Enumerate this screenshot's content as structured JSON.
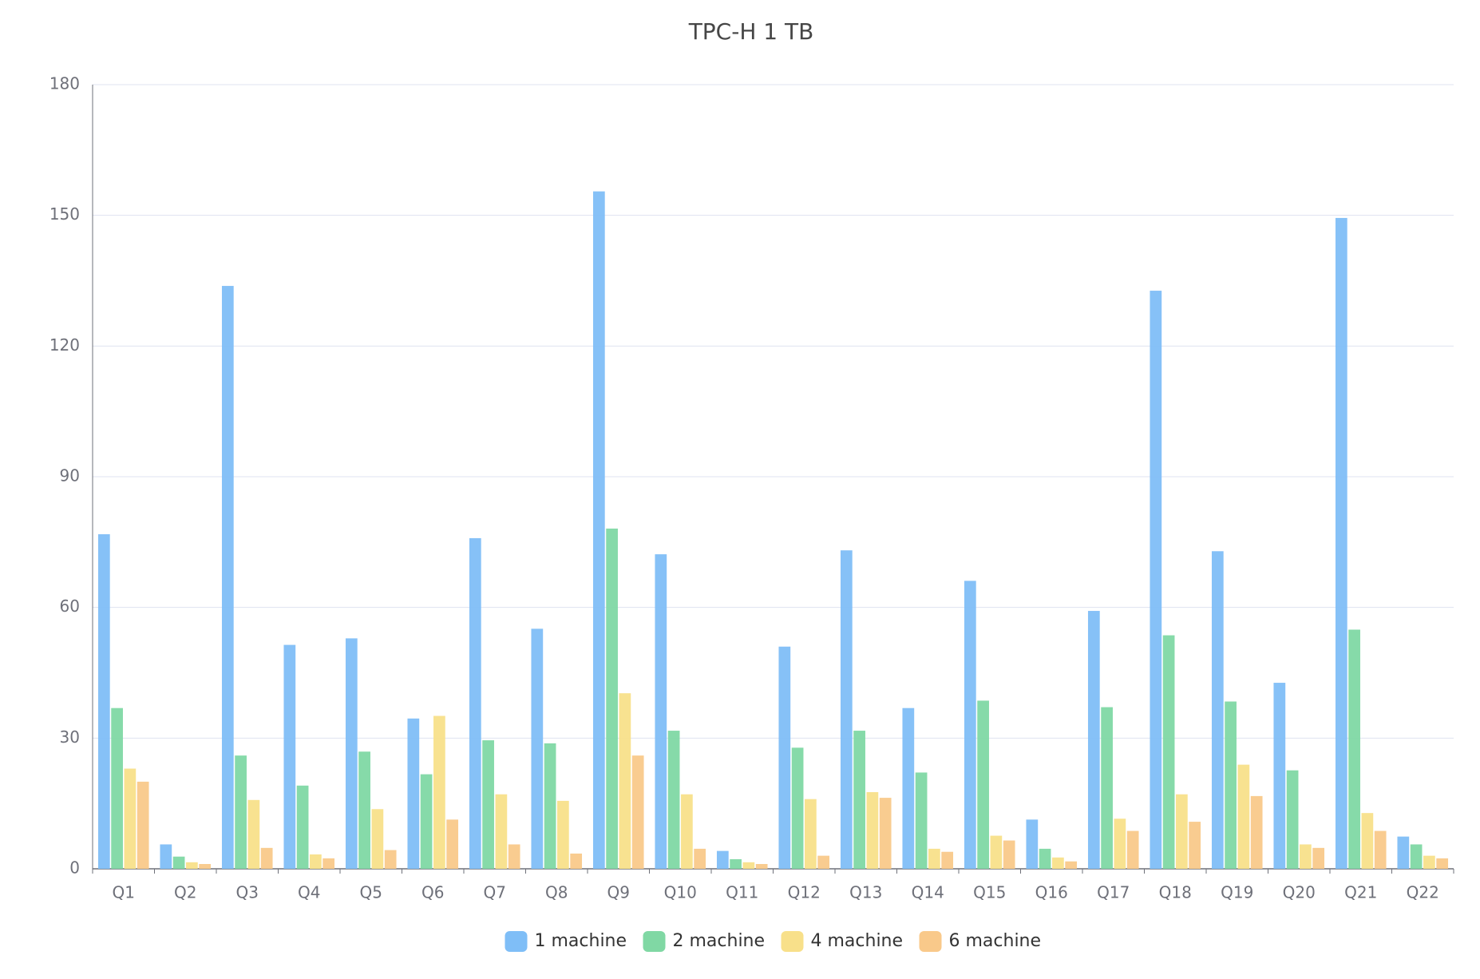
{
  "chart_data": {
    "type": "bar",
    "title": "TPC-H 1 TB",
    "categories": [
      "Q1",
      "Q2",
      "Q3",
      "Q4",
      "Q5",
      "Q6",
      "Q7",
      "Q8",
      "Q9",
      "Q10",
      "Q11",
      "Q12",
      "Q13",
      "Q14",
      "Q15",
      "Q16",
      "Q17",
      "Q18",
      "Q19",
      "Q20",
      "Q21",
      "Q22"
    ],
    "series": [
      {
        "name": "1 machine",
        "color": "#7fbef7",
        "values": [
          76.8,
          5.6,
          133.8,
          51.4,
          52.9,
          34.5,
          75.9,
          55.1,
          155.5,
          72.2,
          4.1,
          51.0,
          73.1,
          36.9,
          66.1,
          11.3,
          59.2,
          132.7,
          72.9,
          42.7,
          149.4,
          7.4
        ]
      },
      {
        "name": "2 machine",
        "color": "#80d8a4",
        "values": [
          36.9,
          2.8,
          26.0,
          19.1,
          26.9,
          21.7,
          29.5,
          28.8,
          78.1,
          31.7,
          2.2,
          27.8,
          31.7,
          22.1,
          38.6,
          4.6,
          37.1,
          53.6,
          38.4,
          22.6,
          54.9,
          5.6
        ]
      },
      {
        "name": "4 machine",
        "color": "#f8e08a",
        "values": [
          23.0,
          1.5,
          15.8,
          3.3,
          13.7,
          35.1,
          17.1,
          15.6,
          40.3,
          17.1,
          1.5,
          16.0,
          17.6,
          4.6,
          7.6,
          2.6,
          11.5,
          17.1,
          23.9,
          5.6,
          12.8,
          3.0
        ]
      },
      {
        "name": "6 machine",
        "color": "#f9c98a",
        "values": [
          20.0,
          1.1,
          4.8,
          2.4,
          4.3,
          11.3,
          5.6,
          3.5,
          26.0,
          4.6,
          1.1,
          3.0,
          16.3,
          3.9,
          6.5,
          1.7,
          8.7,
          10.8,
          16.7,
          4.8,
          8.7,
          2.4
        ]
      }
    ],
    "ylim": [
      0,
      180
    ],
    "yticks": [
      0,
      30,
      60,
      90,
      120,
      150,
      180
    ],
    "grid": true,
    "legend": "bottom"
  }
}
